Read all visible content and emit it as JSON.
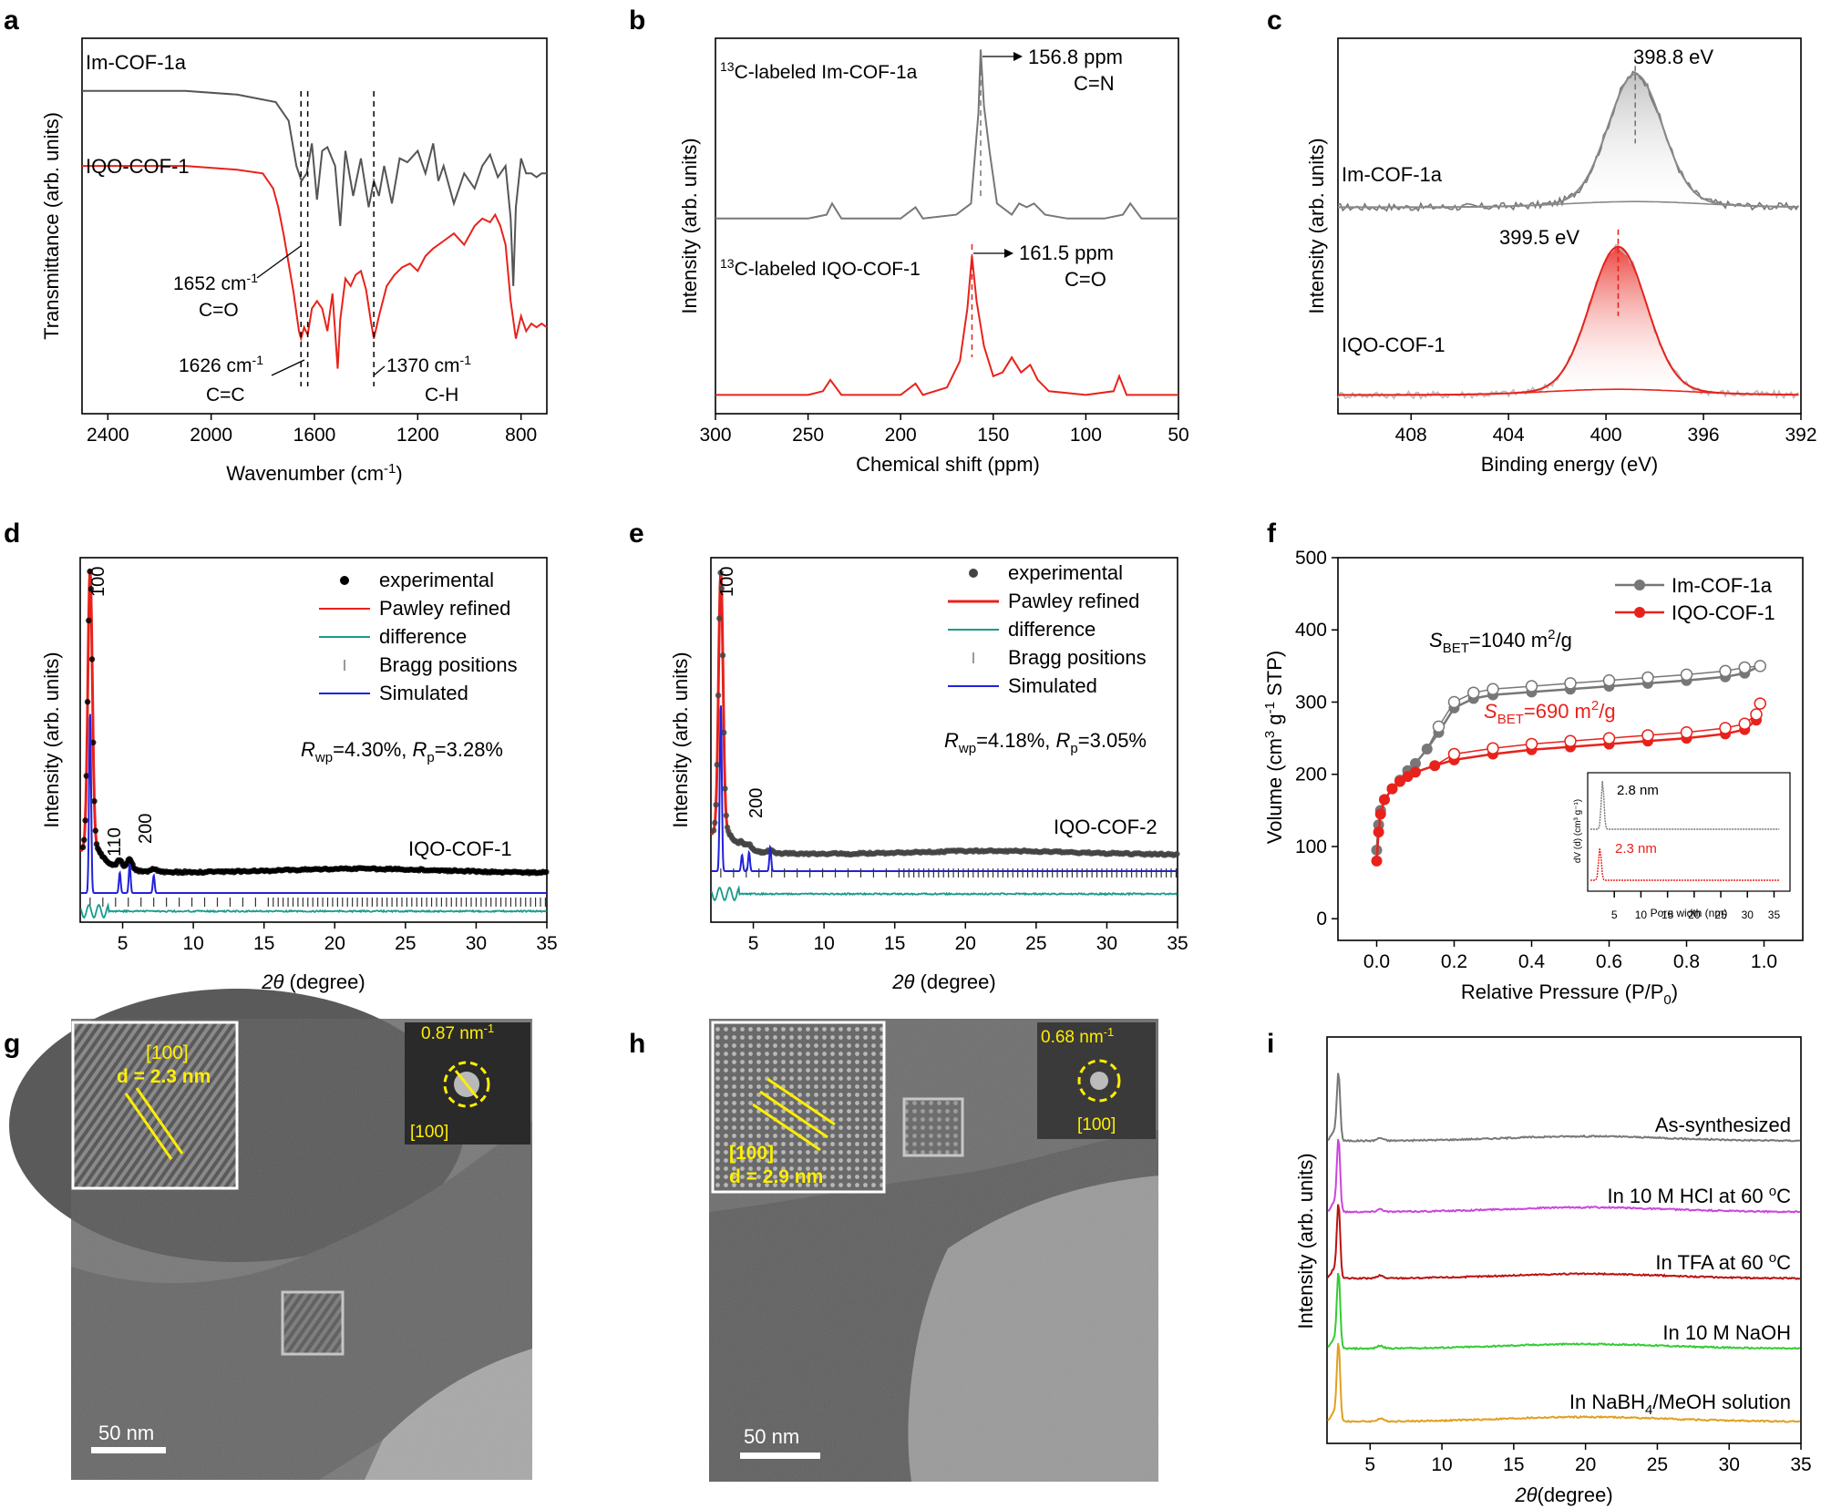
{
  "chart_data": [
    {
      "panel": "a",
      "type": "line",
      "xlabel": "Wavenumber (cm",
      "xlabel_sup": "-1",
      "xlabel_end": ")",
      "ylabel": "Transmittance (arb. units)",
      "xlim": [
        2500,
        700
      ],
      "xticks": [
        2400,
        2000,
        1600,
        1200,
        800
      ],
      "series": [
        {
          "name": "Im-COF-1a",
          "color": "#555555",
          "x": [
            2500,
            2100,
            1900,
            1750,
            1700,
            1670,
            1650,
            1630,
            1610,
            1590,
            1570,
            1550,
            1520,
            1500,
            1480,
            1450,
            1420,
            1390,
            1370,
            1350,
            1330,
            1300,
            1270,
            1240,
            1200,
            1170,
            1140,
            1120,
            1100,
            1060,
            1020,
            980,
            950,
            920,
            890,
            860,
            840,
            830,
            820,
            800,
            780,
            760,
            740,
            720,
            700
          ],
          "y": [
            0.86,
            0.86,
            0.85,
            0.83,
            0.78,
            0.66,
            0.62,
            0.64,
            0.72,
            0.57,
            0.7,
            0.71,
            0.66,
            0.5,
            0.7,
            0.58,
            0.68,
            0.55,
            0.62,
            0.58,
            0.66,
            0.56,
            0.68,
            0.67,
            0.7,
            0.64,
            0.72,
            0.62,
            0.66,
            0.56,
            0.64,
            0.6,
            0.66,
            0.69,
            0.63,
            0.66,
            0.52,
            0.34,
            0.55,
            0.68,
            0.64,
            0.64,
            0.63,
            0.64,
            0.64
          ]
        },
        {
          "name": "IQO-COF-1",
          "color": "#e8221b",
          "x": [
            2500,
            2100,
            1900,
            1800,
            1760,
            1740,
            1720,
            1700,
            1680,
            1660,
            1652,
            1640,
            1626,
            1610,
            1590,
            1570,
            1550,
            1530,
            1510,
            1500,
            1480,
            1460,
            1440,
            1420,
            1400,
            1380,
            1370,
            1350,
            1320,
            1290,
            1260,
            1230,
            1200,
            1170,
            1140,
            1100,
            1060,
            1020,
            980,
            950,
            920,
            900,
            880,
            860,
            840,
            820,
            800,
            780,
            760,
            740,
            720,
            700
          ],
          "y": [
            0.66,
            0.66,
            0.65,
            0.64,
            0.6,
            0.55,
            0.48,
            0.4,
            0.32,
            0.22,
            0.2,
            0.23,
            0.21,
            0.28,
            0.3,
            0.28,
            0.22,
            0.32,
            0.12,
            0.25,
            0.36,
            0.34,
            0.37,
            0.38,
            0.33,
            0.24,
            0.2,
            0.26,
            0.34,
            0.37,
            0.39,
            0.4,
            0.38,
            0.42,
            0.44,
            0.46,
            0.48,
            0.45,
            0.5,
            0.52,
            0.51,
            0.53,
            0.5,
            0.45,
            0.3,
            0.2,
            0.26,
            0.22,
            0.24,
            0.23,
            0.24,
            0.23
          ]
        }
      ],
      "vlines": [
        1652,
        1626,
        1370
      ],
      "annotations": [
        {
          "text": "1652 cm",
          "sup": "-1",
          "line2": "C=O"
        },
        {
          "text": "1626 cm",
          "sup": "-1",
          "line2": "C=C"
        },
        {
          "text": "1370 cm",
          "sup": "-1",
          "line2": "C-H"
        }
      ]
    },
    {
      "panel": "b",
      "type": "line",
      "xlabel": "Chemical shift (ppm)",
      "ylabel": "Intensity (arb. units)",
      "xlim": [
        300,
        50
      ],
      "xticks": [
        300,
        250,
        200,
        150,
        100,
        50
      ],
      "series": [
        {
          "name_sup": "13",
          "name": "C-labeled Im-COF-1a",
          "color": "#777777",
          "x": [
            300,
            250,
            240,
            237,
            232,
            200,
            192,
            188,
            170,
            162,
            158,
            156.8,
            155,
            152,
            148,
            140,
            136,
            132,
            128,
            122,
            110,
            90,
            80,
            76,
            70,
            50
          ],
          "y": [
            0.52,
            0.52,
            0.53,
            0.56,
            0.52,
            0.52,
            0.55,
            0.52,
            0.53,
            0.56,
            0.8,
            0.97,
            0.82,
            0.7,
            0.56,
            0.53,
            0.56,
            0.55,
            0.56,
            0.53,
            0.52,
            0.52,
            0.53,
            0.56,
            0.52,
            0.52
          ]
        },
        {
          "name_sup": "13",
          "name": "C-labeled IQO-COF-1",
          "color": "#e8221b",
          "x": [
            300,
            250,
            242,
            238,
            232,
            200,
            192,
            188,
            175,
            168,
            164,
            161.5,
            159,
            155,
            150,
            145,
            140,
            135,
            130,
            126,
            120,
            100,
            85,
            82,
            78,
            50
          ],
          "y": [
            0.05,
            0.05,
            0.06,
            0.09,
            0.05,
            0.05,
            0.08,
            0.05,
            0.07,
            0.14,
            0.28,
            0.42,
            0.3,
            0.18,
            0.1,
            0.11,
            0.15,
            0.11,
            0.13,
            0.09,
            0.06,
            0.05,
            0.06,
            0.1,
            0.05,
            0.05
          ]
        }
      ],
      "annotations": [
        {
          "text": "156.8 ppm",
          "line2": "C=N"
        },
        {
          "text": "161.5 ppm",
          "line2": "C=O"
        }
      ]
    },
    {
      "panel": "c",
      "type": "line",
      "xlabel": "Binding energy (eV)",
      "ylabel": "Intensity (arb. units)",
      "xlim": [
        411,
        392
      ],
      "xticks": [
        408,
        404,
        400,
        396,
        392
      ],
      "series": [
        {
          "name": "Im-COF-1a",
          "color": "#888888",
          "peak": 398.8,
          "width": 1.1,
          "height": 0.34,
          "base": 0.55
        },
        {
          "name": "IQO-COF-1",
          "color": "#e8221b",
          "peak": 399.5,
          "width": 1.15,
          "height": 0.38,
          "base": 0.05
        }
      ],
      "annotations": [
        {
          "text": "398.8 eV"
        },
        {
          "text": "399.5 eV"
        }
      ]
    },
    {
      "panel": "d",
      "type": "line",
      "xlabel_italic": "2θ",
      "xlabel": " (degree)",
      "ylabel": "Intensity (arb. units)",
      "xlim": [
        2,
        35
      ],
      "xticks": [
        5,
        10,
        15,
        20,
        25,
        30,
        35
      ],
      "legend": [
        "experimental",
        "Pawley refined",
        "difference",
        "Bragg positions",
        "Simulated"
      ],
      "legend_colors": [
        "#000000",
        "#e8221b",
        "#1a9b8b",
        "#777777",
        "#2222dd"
      ],
      "stats": {
        "Rwp": "=4.30%, ",
        "Rp": "=3.28%"
      },
      "peaks": [
        "100",
        "110",
        "200"
      ],
      "sample": "IQO-COF-1"
    },
    {
      "panel": "e",
      "type": "line",
      "xlabel_italic": "2θ",
      "xlabel": " (degree)",
      "ylabel": "Intensity (arb. units)",
      "xlim": [
        2,
        35
      ],
      "xticks": [
        5,
        10,
        15,
        20,
        25,
        30,
        35
      ],
      "legend": [
        "experimental",
        "Pawley refined",
        "difference",
        "Bragg positions",
        "Simulated"
      ],
      "legend_colors": [
        "#444444",
        "#e8221b",
        "#1a9b8b",
        "#777777",
        "#2222dd"
      ],
      "stats": {
        "Rwp": "=4.18%, ",
        "Rp": "=3.05%"
      },
      "peaks": [
        "100",
        "200"
      ],
      "sample": "IQO-COF-2"
    },
    {
      "panel": "f",
      "type": "scatter",
      "xlabel": "Relative Pressure (P/P",
      "xlabel_sub": "0",
      "xlabel_end": ")",
      "ylabel": "Volume (cm",
      "xlim": [
        -0.1,
        1.1
      ],
      "ylim": [
        -30,
        500
      ],
      "xticks": [
        0.0,
        0.2,
        0.4,
        0.6,
        0.8,
        1.0
      ],
      "yticks": [
        0,
        100,
        200,
        300,
        400,
        500
      ],
      "series": [
        {
          "name": "Im-COF-1a",
          "color": "#777777",
          "x": [
            0.0,
            0.005,
            0.01,
            0.02,
            0.04,
            0.06,
            0.08,
            0.1,
            0.13,
            0.16,
            0.2,
            0.25,
            0.3,
            0.4,
            0.5,
            0.6,
            0.7,
            0.8,
            0.9,
            0.95,
            0.99
          ],
          "y": [
            95,
            130,
            150,
            165,
            180,
            192,
            205,
            215,
            235,
            258,
            292,
            305,
            310,
            314,
            318,
            322,
            326,
            330,
            335,
            340,
            350
          ]
        },
        {
          "name": "IQO-COF-1",
          "color": "#e8221b",
          "x": [
            0.0,
            0.005,
            0.01,
            0.02,
            0.04,
            0.06,
            0.08,
            0.1,
            0.15,
            0.2,
            0.3,
            0.4,
            0.5,
            0.6,
            0.7,
            0.8,
            0.9,
            0.95,
            0.98,
            0.99
          ],
          "y": [
            80,
            120,
            145,
            165,
            180,
            190,
            197,
            203,
            212,
            220,
            228,
            234,
            238,
            242,
            246,
            250,
            256,
            262,
            275,
            298
          ]
        }
      ],
      "sbet": [
        {
          "label": "S",
          "sub": "BET",
          "value": "=1040 m",
          "sup": "2",
          "unit": "/g"
        },
        {
          "label": "S",
          "sub": "BET",
          "value": "=690 m",
          "sup": "2",
          "unit": "/g"
        }
      ],
      "inset": {
        "xlabel": "Pore width (nm)",
        "ylabel": "dV (d) (cm³ g⁻¹)",
        "xlim": [
          0,
          38
        ],
        "xticks": [
          5,
          10,
          15,
          20,
          25,
          30,
          35
        ],
        "peaks": [
          {
            "x": 2.8,
            "label": "2.8 nm"
          },
          {
            "x": 2.3,
            "label": "2.3 nm"
          }
        ]
      }
    },
    {
      "panel": "i",
      "type": "line",
      "xlabel_italic": "2θ",
      "xlabel": "(degree)",
      "ylabel": "Intensity (arb. units)",
      "xlim": [
        2,
        35
      ],
      "xticks": [
        5,
        10,
        15,
        20,
        25,
        30,
        35
      ],
      "series": [
        {
          "name": "As-synthesized",
          "color": "#777777"
        },
        {
          "name": "In 10 M HCl at 60 ",
          "name_sup": "o",
          "name_end": "C",
          "color": "#cc44dd"
        },
        {
          "name": "In TFA at 60 ",
          "name_sup": "o",
          "name_end": "C",
          "color": "#bb1111"
        },
        {
          "name": "In 10 M NaOH",
          "color": "#33cc33"
        },
        {
          "name": "In NaBH",
          "name_sub": "4",
          "name_end": "/MeOH solution",
          "color": "#e0a020"
        }
      ]
    }
  ],
  "panels": {
    "labels": [
      "a",
      "b",
      "c",
      "d",
      "e",
      "f",
      "g",
      "h",
      "i"
    ],
    "g": {
      "inset_hkl": "[100]",
      "inset_d": "d = 2.3 nm",
      "fft_value": "0.87 nm",
      "fft_sup": "-1",
      "fft_hkl": "[100]",
      "scale": "50 nm"
    },
    "h": {
      "inset_hkl": "[100]",
      "inset_d": "d = 2.9 nm",
      "fft_value": "0.68 nm",
      "fft_sup": "-1",
      "fft_hkl": "[100]",
      "scale": "50 nm"
    }
  }
}
